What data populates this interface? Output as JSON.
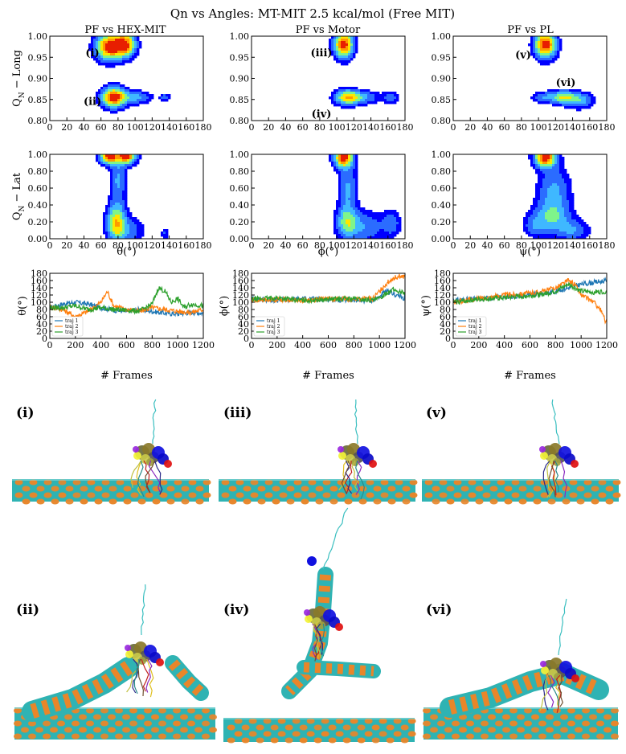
{
  "figure": {
    "title": "Qn vs Angles: MT-MIT 2.5 kcal/mol (Free MIT)",
    "column_titles": [
      "PF vs HEX-MIT",
      "PF vs Motor",
      "PF vs PL"
    ],
    "row_ylabels": {
      "long": "Q",
      "long_sub": "N",
      "long_suffix": " − Long",
      "lat": "Q",
      "lat_sub": "N",
      "lat_suffix": " − Lat"
    },
    "angle_labels": [
      "θ(°)",
      "ϕ(°)",
      "ψ(°)"
    ],
    "frames_label": "# Frames",
    "region_labels": [
      {
        "panel": 0,
        "label": "(i)",
        "x": 50,
        "y": 0.96
      },
      {
        "panel": 0,
        "label": "(ii)",
        "x": 50,
        "y": 0.845
      },
      {
        "panel": 1,
        "label": "(iii)",
        "x": 82,
        "y": 0.96
      },
      {
        "panel": 1,
        "label": "(iv)",
        "x": 82,
        "y": 0.815
      },
      {
        "panel": 2,
        "label": "(v)",
        "x": 82,
        "y": 0.955
      },
      {
        "panel": 2,
        "label": "(vi)",
        "x": 132,
        "y": 0.89
      }
    ],
    "snapshot_labels": [
      "(i)",
      "(iii)",
      "(v)",
      "(ii)",
      "(iv)",
      "(vi)"
    ],
    "colors": {
      "blue": "#1f77b4",
      "orange": "#ff7f0e",
      "green": "#2ca02c"
    }
  },
  "chart_data": [
    {
      "type": "heatmap",
      "panel": "PF vs HEX-MIT / Long",
      "xlim": [
        0,
        180
      ],
      "ylim": [
        0.8,
        1.0
      ],
      "xticks": [
        0,
        20,
        40,
        60,
        80,
        100,
        120,
        140,
        160,
        180
      ],
      "yticks": [
        "0.80",
        "0.85",
        "0.90",
        "0.95",
        "1.00"
      ],
      "peaks": [
        {
          "x": 70,
          "y": 0.975,
          "w": 10,
          "h": 0.02,
          "a": 1.0
        },
        {
          "x": 88,
          "y": 0.98,
          "w": 8,
          "h": 0.018,
          "a": 0.9
        },
        {
          "x": 75,
          "y": 0.855,
          "w": 9,
          "h": 0.015,
          "a": 1.0
        },
        {
          "x": 100,
          "y": 0.855,
          "w": 12,
          "h": 0.01,
          "a": 0.3
        },
        {
          "x": 135,
          "y": 0.855,
          "w": 4,
          "h": 0.006,
          "a": 0.2
        }
      ]
    },
    {
      "type": "heatmap",
      "panel": "PF vs Motor / Long",
      "xlim": [
        0,
        180
      ],
      "ylim": [
        0.8,
        1.0
      ],
      "xticks": [
        0,
        20,
        40,
        60,
        80,
        100,
        120,
        140,
        160,
        180
      ],
      "yticks": [
        "0.80",
        "0.85",
        "0.90",
        "0.95",
        "1.00"
      ],
      "peaks": [
        {
          "x": 108,
          "y": 0.98,
          "w": 7,
          "h": 0.02,
          "a": 1.0
        },
        {
          "x": 112,
          "y": 0.855,
          "w": 9,
          "h": 0.012,
          "a": 0.6
        },
        {
          "x": 128,
          "y": 0.855,
          "w": 14,
          "h": 0.01,
          "a": 0.3
        },
        {
          "x": 163,
          "y": 0.855,
          "w": 6,
          "h": 0.01,
          "a": 0.2
        }
      ]
    },
    {
      "type": "heatmap",
      "panel": "PF vs PL / Long",
      "xlim": [
        0,
        180
      ],
      "ylim": [
        0.8,
        1.0
      ],
      "xticks": [
        0,
        20,
        40,
        60,
        80,
        100,
        120,
        140,
        160,
        180
      ],
      "yticks": [
        "0.80",
        "0.85",
        "0.90",
        "0.95",
        "1.00"
      ],
      "peaks": [
        {
          "x": 108,
          "y": 0.98,
          "w": 8,
          "h": 0.02,
          "a": 1.0
        },
        {
          "x": 130,
          "y": 0.855,
          "w": 9,
          "h": 0.01,
          "a": 0.55
        },
        {
          "x": 148,
          "y": 0.848,
          "w": 10,
          "h": 0.012,
          "a": 0.35
        },
        {
          "x": 108,
          "y": 0.855,
          "w": 10,
          "h": 0.009,
          "a": 0.25
        }
      ]
    },
    {
      "type": "heatmap",
      "panel": "PF vs HEX-MIT / Lat",
      "xlim": [
        0,
        180
      ],
      "ylim": [
        0.0,
        1.0
      ],
      "xticks": [
        0,
        20,
        40,
        60,
        80,
        100,
        120,
        140,
        160,
        180
      ],
      "yticks": [
        "0.00",
        "0.20",
        "0.40",
        "0.60",
        "0.80",
        "1.00"
      ],
      "peaks": [
        {
          "x": 70,
          "y": 0.98,
          "w": 7,
          "h": 0.06,
          "a": 1.0
        },
        {
          "x": 90,
          "y": 0.98,
          "w": 7,
          "h": 0.06,
          "a": 0.95
        },
        {
          "x": 80,
          "y": 0.7,
          "w": 6,
          "h": 0.2,
          "a": 0.28
        },
        {
          "x": 78,
          "y": 0.2,
          "w": 7,
          "h": 0.14,
          "a": 0.62
        },
        {
          "x": 90,
          "y": 0.1,
          "w": 12,
          "h": 0.1,
          "a": 0.25
        },
        {
          "x": 135,
          "y": 0.06,
          "w": 3,
          "h": 0.05,
          "a": 0.15
        }
      ]
    },
    {
      "type": "heatmap",
      "panel": "PF vs Motor / Lat",
      "xlim": [
        0,
        180
      ],
      "ylim": [
        0.0,
        1.0
      ],
      "xticks": [
        0,
        20,
        40,
        60,
        80,
        100,
        120,
        140,
        160,
        180
      ],
      "yticks": [
        "0.00",
        "0.20",
        "0.40",
        "0.60",
        "0.80",
        "1.00"
      ],
      "peaks": [
        {
          "x": 108,
          "y": 0.97,
          "w": 7,
          "h": 0.08,
          "a": 1.0
        },
        {
          "x": 113,
          "y": 0.6,
          "w": 7,
          "h": 0.2,
          "a": 0.28
        },
        {
          "x": 112,
          "y": 0.2,
          "w": 8,
          "h": 0.12,
          "a": 0.45
        },
        {
          "x": 132,
          "y": 0.14,
          "w": 15,
          "h": 0.12,
          "a": 0.25
        },
        {
          "x": 164,
          "y": 0.18,
          "w": 7,
          "h": 0.1,
          "a": 0.22
        }
      ]
    },
    {
      "type": "heatmap",
      "panel": "PF vs PL / Lat",
      "xlim": [
        0,
        180
      ],
      "ylim": [
        0.0,
        1.0
      ],
      "xticks": [
        0,
        20,
        40,
        60,
        80,
        100,
        120,
        140,
        160,
        180
      ],
      "yticks": [
        "0.00",
        "0.20",
        "0.40",
        "0.60",
        "0.80",
        "1.00"
      ],
      "peaks": [
        {
          "x": 108,
          "y": 0.97,
          "w": 8,
          "h": 0.08,
          "a": 1.0
        },
        {
          "x": 118,
          "y": 0.55,
          "w": 12,
          "h": 0.2,
          "a": 0.3
        },
        {
          "x": 115,
          "y": 0.25,
          "w": 14,
          "h": 0.12,
          "a": 0.35
        },
        {
          "x": 140,
          "y": 0.1,
          "w": 12,
          "h": 0.08,
          "a": 0.25
        },
        {
          "x": 95,
          "y": 0.15,
          "w": 8,
          "h": 0.08,
          "a": 0.2
        }
      ]
    },
    {
      "type": "line",
      "panel": "theta",
      "xlim": [
        0,
        1200
      ],
      "ylim": [
        0,
        180
      ],
      "xticks": [
        0,
        200,
        400,
        600,
        800,
        1000,
        1200
      ],
      "yticks": [
        0,
        20,
        40,
        60,
        80,
        100,
        120,
        140,
        160,
        180
      ],
      "series": [
        {
          "name": "traj 1",
          "color": "#1f77b4",
          "points": [
            [
              0,
              85
            ],
            [
              100,
              95
            ],
            [
              200,
              100
            ],
            [
              300,
              95
            ],
            [
              400,
              85
            ],
            [
              500,
              78
            ],
            [
              600,
              75
            ],
            [
              700,
              80
            ],
            [
              800,
              75
            ],
            [
              900,
              70
            ],
            [
              1000,
              68
            ],
            [
              1100,
              72
            ],
            [
              1200,
              70
            ]
          ]
        },
        {
          "name": "traj 2",
          "color": "#ff7f0e",
          "points": [
            [
              0,
              88
            ],
            [
              100,
              80
            ],
            [
              200,
              60
            ],
            [
              300,
              75
            ],
            [
              400,
              100
            ],
            [
              450,
              130
            ],
            [
              500,
              90
            ],
            [
              600,
              80
            ],
            [
              700,
              75
            ],
            [
              800,
              85
            ],
            [
              900,
              80
            ],
            [
              1000,
              75
            ],
            [
              1100,
              72
            ],
            [
              1200,
              80
            ]
          ]
        },
        {
          "name": "traj 3",
          "color": "#2ca02c",
          "points": [
            [
              0,
              85
            ],
            [
              100,
              85
            ],
            [
              200,
              90
            ],
            [
              300,
              80
            ],
            [
              400,
              85
            ],
            [
              500,
              80
            ],
            [
              600,
              78
            ],
            [
              700,
              75
            ],
            [
              800,
              95
            ],
            [
              850,
              140
            ],
            [
              900,
              130
            ],
            [
              950,
              100
            ],
            [
              1000,
              110
            ],
            [
              1050,
              85
            ],
            [
              1100,
              95
            ],
            [
              1200,
              90
            ]
          ]
        }
      ]
    },
    {
      "type": "line",
      "panel": "phi",
      "xlim": [
        0,
        1200
      ],
      "ylim": [
        0,
        180
      ],
      "xticks": [
        0,
        200,
        400,
        600,
        800,
        1000,
        1200
      ],
      "yticks": [
        0,
        20,
        40,
        60,
        80,
        100,
        120,
        140,
        160,
        180
      ],
      "series": [
        {
          "name": "traj 1",
          "color": "#1f77b4",
          "points": [
            [
              0,
              110
            ],
            [
              200,
              105
            ],
            [
              400,
              110
            ],
            [
              600,
              108
            ],
            [
              800,
              105
            ],
            [
              950,
              105
            ],
            [
              1000,
              115
            ],
            [
              1050,
              130
            ],
            [
              1100,
              125
            ],
            [
              1200,
              110
            ]
          ]
        },
        {
          "name": "traj 2",
          "color": "#ff7f0e",
          "points": [
            [
              0,
              105
            ],
            [
              200,
              108
            ],
            [
              400,
              105
            ],
            [
              600,
              110
            ],
            [
              800,
              108
            ],
            [
              950,
              110
            ],
            [
              1000,
              130
            ],
            [
              1050,
              150
            ],
            [
              1100,
              165
            ],
            [
              1150,
              172
            ],
            [
              1200,
              170
            ]
          ]
        },
        {
          "name": "traj 3",
          "color": "#2ca02c",
          "points": [
            [
              0,
              108
            ],
            [
              200,
              112
            ],
            [
              400,
              105
            ],
            [
              600,
              108
            ],
            [
              800,
              110
            ],
            [
              950,
              105
            ],
            [
              1000,
              110
            ],
            [
              1050,
              125
            ],
            [
              1100,
              135
            ],
            [
              1200,
              125
            ]
          ]
        }
      ]
    },
    {
      "type": "line",
      "panel": "psi",
      "xlim": [
        0,
        1200
      ],
      "ylim": [
        0,
        180
      ],
      "xticks": [
        0,
        200,
        400,
        600,
        800,
        1000,
        1200
      ],
      "yticks": [
        0,
        20,
        40,
        60,
        80,
        100,
        120,
        140,
        160,
        180
      ],
      "series": [
        {
          "name": "traj 1",
          "color": "#1f77b4",
          "points": [
            [
              0,
              105
            ],
            [
              200,
              110
            ],
            [
              400,
              115
            ],
            [
              600,
              120
            ],
            [
              700,
              125
            ],
            [
              800,
              130
            ],
            [
              900,
              140
            ],
            [
              950,
              145
            ],
            [
              1000,
              150
            ],
            [
              1100,
              155
            ],
            [
              1200,
              160
            ]
          ]
        },
        {
          "name": "traj 2",
          "color": "#ff7f0e",
          "points": [
            [
              0,
              100
            ],
            [
              200,
              110
            ],
            [
              400,
              120
            ],
            [
              600,
              125
            ],
            [
              700,
              130
            ],
            [
              800,
              140
            ],
            [
              900,
              160
            ],
            [
              950,
              150
            ],
            [
              1000,
              120
            ],
            [
              1100,
              100
            ],
            [
              1150,
              80
            ],
            [
              1200,
              40
            ]
          ]
        },
        {
          "name": "traj 3",
          "color": "#2ca02c",
          "points": [
            [
              0,
              100
            ],
            [
              200,
              108
            ],
            [
              400,
              112
            ],
            [
              600,
              118
            ],
            [
              700,
              122
            ],
            [
              800,
              130
            ],
            [
              900,
              150
            ],
            [
              950,
              140
            ],
            [
              1000,
              130
            ],
            [
              1100,
              128
            ],
            [
              1200,
              130
            ]
          ]
        }
      ]
    }
  ]
}
